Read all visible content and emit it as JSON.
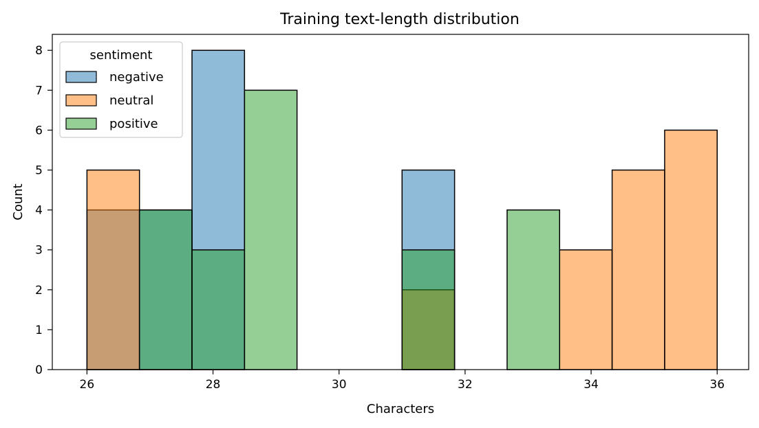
{
  "chart_data": {
    "type": "histogram",
    "title": "Training text-length distribution",
    "xlabel": "Characters",
    "ylabel": "Count",
    "xlim": [
      25.45,
      36.5
    ],
    "ylim": [
      0,
      8.4
    ],
    "xticks": [
      26,
      28,
      30,
      32,
      34,
      36
    ],
    "yticks": [
      0,
      1,
      2,
      3,
      4,
      5,
      6,
      7,
      8
    ],
    "bin_edges": [
      26.0,
      26.8333,
      27.6667,
      28.5,
      29.3333,
      30.1667,
      31.0,
      31.8333,
      32.6667,
      33.5,
      34.3333,
      35.1667,
      36.0
    ],
    "legend": {
      "title": "sentiment",
      "placement": "upper left"
    },
    "series": [
      {
        "name": "negative",
        "color": "#1f77b4",
        "values": [
          4,
          4,
          8,
          0,
          0,
          0,
          5,
          0,
          0,
          0,
          0,
          0
        ]
      },
      {
        "name": "neutral",
        "color": "#ff7f0e",
        "values": [
          5,
          0,
          0,
          0,
          0,
          0,
          2,
          0,
          0,
          3,
          5,
          6
        ]
      },
      {
        "name": "positive",
        "color": "#2ca02c",
        "values": [
          0,
          4,
          3,
          7,
          0,
          0,
          3,
          0,
          4,
          0,
          0,
          0
        ]
      }
    ]
  }
}
